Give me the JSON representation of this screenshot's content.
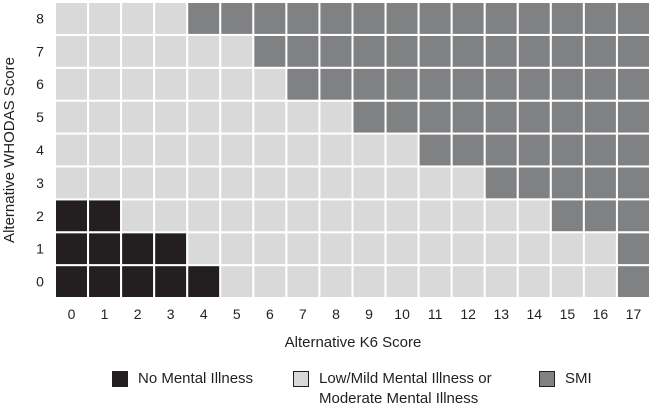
{
  "colors": {
    "none": "#231f20",
    "mild": "#d9d9da",
    "smi": "#808183",
    "grid": "#ffffff"
  },
  "chart_data": {
    "type": "heatmap",
    "xlabel": "Alternative K6 Score",
    "ylabel": "Alternative WHODAS Score",
    "x_ticks": [
      "0",
      "1",
      "2",
      "3",
      "4",
      "5",
      "6",
      "7",
      "8",
      "9",
      "10",
      "11",
      "12",
      "13",
      "14",
      "15",
      "16",
      "17"
    ],
    "y_ticks": [
      "0",
      "1",
      "2",
      "3",
      "4",
      "5",
      "6",
      "7",
      "8"
    ],
    "categories": {
      "none": "No Mental Illness",
      "mild": "Low/Mild Mental Illness or Moderate Mental Illness",
      "smi": "SMI"
    },
    "thresholds": {
      "no_mental_illness_max_k6_by_whodas": [
        4,
        3,
        1,
        -1,
        -1,
        -1,
        -1,
        -1,
        -1
      ],
      "smi_min_k6_by_whodas": [
        17,
        17,
        15,
        13,
        11,
        9,
        7,
        6,
        4
      ]
    }
  },
  "legend": {
    "items": [
      {
        "key": "none",
        "label": "No Mental Illness"
      },
      {
        "key": "mild",
        "label": "Low/Mild Mental Illness or\nModerate Mental Illness"
      },
      {
        "key": "smi",
        "label": "SMI"
      }
    ]
  }
}
